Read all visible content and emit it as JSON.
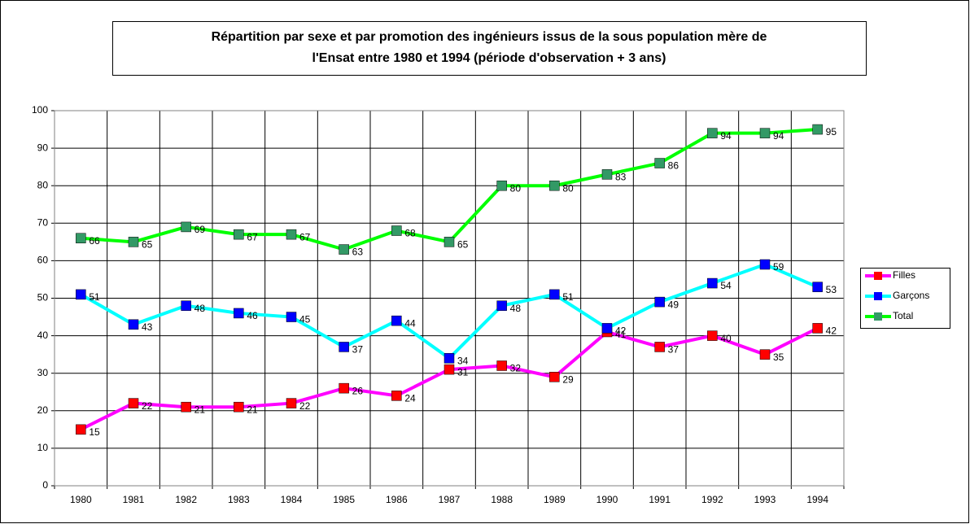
{
  "chart_data": {
    "type": "line",
    "title": [
      "Répartition par sexe et par promotion des ingénieurs issus de la sous population mère de",
      "l'Ensat entre 1980 et 1994 (période d'observation + 3 ans)"
    ],
    "categories": [
      "1980",
      "1981",
      "1982",
      "1983",
      "1984",
      "1985",
      "1986",
      "1987",
      "1988",
      "1989",
      "1990",
      "1991",
      "1992",
      "1993",
      "1994"
    ],
    "series": [
      {
        "name": "Filles",
        "color": "#ff00ff",
        "marker_color": "#ff0000",
        "values": [
          15,
          22,
          21,
          21,
          22,
          26,
          24,
          31,
          32,
          29,
          41,
          37,
          40,
          35,
          42
        ]
      },
      {
        "name": "Garçons",
        "color": "#00ffff",
        "marker_color": "#0000ff",
        "values": [
          51,
          43,
          48,
          46,
          45,
          37,
          44,
          34,
          48,
          51,
          42,
          49,
          54,
          59,
          53
        ]
      },
      {
        "name": "Total",
        "color": "#00ff00",
        "marker_color": "#339966",
        "values": [
          66,
          65,
          69,
          67,
          67,
          63,
          68,
          65,
          80,
          80,
          83,
          86,
          94,
          94,
          95
        ]
      }
    ],
    "ylim": [
      0,
      100
    ],
    "yticks": [
      0,
      10,
      20,
      30,
      40,
      50,
      60,
      70,
      80,
      90,
      100
    ],
    "grid": true,
    "legend": "right"
  }
}
